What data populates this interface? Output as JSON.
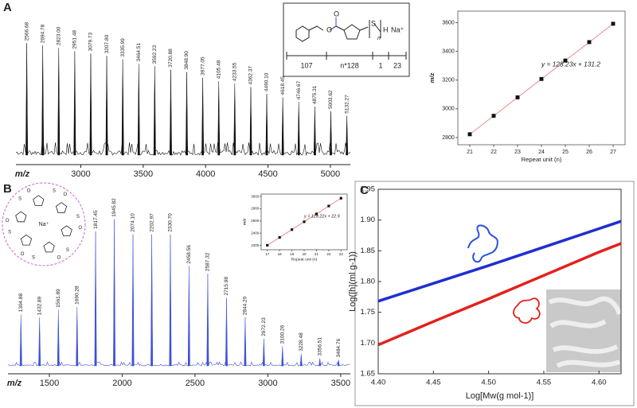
{
  "panels": [
    "A",
    "B",
    "C"
  ],
  "structure": {
    "atoms": [
      "O",
      "O",
      "S",
      "n",
      "H",
      "Na⁺"
    ],
    "segments": [
      "107",
      "n*128",
      "1",
      "23"
    ]
  },
  "macrocycle": {
    "atoms": [
      "O",
      "S",
      "Na⁺"
    ]
  },
  "chart_data": [
    {
      "type": "spectrum",
      "xlabel": "m/z",
      "color": "#111111",
      "x": [
        2566.68,
        2694.78,
        2823.0,
        2951.48,
        3079.73,
        3207.8,
        3335.99,
        3464.51,
        3592.23,
        3720.88,
        3848.9,
        3977.05,
        4105.48,
        4233.55,
        4362.37,
        4490.1,
        4618.45,
        4746.67,
        4875.31,
        5003.62,
        5132.27
      ],
      "x_labels": [
        "2566.68",
        "2694.78",
        "2823.00",
        "2951.48",
        "3079.73",
        "3207.80",
        "3335.99",
        "3464.51",
        "3592.23",
        "3720.88",
        "3848.90",
        "3977.05",
        "4105.48",
        "4233.55",
        "4362.37",
        "4490.10",
        "4618.45",
        "4746.67",
        "4875.31",
        "5003.62",
        "5132.27"
      ],
      "values": [
        97,
        95,
        93,
        90,
        88,
        86,
        83,
        79,
        77,
        74,
        72,
        67,
        64,
        62,
        59,
        53,
        50,
        46,
        42,
        38,
        34
      ],
      "xlim": [
        2480,
        5160
      ],
      "xticks": [
        3000,
        3500,
        4000,
        4500,
        5000
      ]
    },
    {
      "type": "scatter",
      "xlabel": "Repeat unit (n)",
      "ylabel": "m/z",
      "annotation": "y = 128.23x + 131.2",
      "color": "#111111",
      "fit_color": "#e88080",
      "x": [
        21,
        22,
        23,
        24,
        25,
        26,
        27
      ],
      "values": [
        2823.0,
        2951.48,
        3079.73,
        3207.8,
        3335.99,
        3464.51,
        3592.23
      ],
      "xlim": [
        20.5,
        27.5
      ],
      "xticks": [
        21,
        22,
        23,
        24,
        25,
        26,
        27
      ],
      "ylim": [
        2750,
        3680
      ],
      "yticks": [
        2800,
        3000,
        3200,
        3400,
        3600
      ]
    },
    {
      "type": "spectrum",
      "xlabel": "m/z",
      "color": "#3f51d6",
      "x": [
        1304.88,
        1432.89,
        1561.89,
        1690.28,
        1817.45,
        1945.82,
        2074.1,
        2202.97,
        2330.7,
        2458.56,
        2587.32,
        2715.98,
        2844.2,
        2972.23,
        3100.26,
        3228.48,
        3356.51,
        3484.76
      ],
      "x_labels": [
        "1304.88",
        "1432.89",
        "1561.89",
        "1690.28",
        "1817.45",
        "1945.82",
        "2074.10",
        "2202.97",
        "2330.70",
        "2458.56",
        "2587.32",
        "2715.98",
        "2844.20",
        "2972.23",
        "3100.26",
        "3228.48",
        "3356.51",
        "3484.76"
      ],
      "values": [
        34,
        32,
        37,
        39,
        89,
        97,
        87,
        87,
        87,
        66,
        61,
        45,
        32,
        18,
        13,
        8,
        5,
        4
      ],
      "xlim": [
        1216,
        3566
      ],
      "xticks": [
        1500,
        2000,
        2500,
        3000,
        3500
      ]
    },
    {
      "type": "scatter",
      "xlabel": "Repeat unit (n)",
      "ylabel": "m/z",
      "annotation": "y = 128.22x + 22.9",
      "color": "#111111",
      "fit_color": "#e88080",
      "x": [
        17,
        18,
        19,
        20,
        21,
        22,
        23
      ],
      "values": [
        2202.97,
        2330.7,
        2458.56,
        2587.32,
        2715.98,
        2844.2,
        2972.23
      ],
      "xlim": [
        16.5,
        23.5
      ],
      "xticks": [
        17,
        18,
        19,
        20,
        21,
        22,
        23
      ],
      "ylim": [
        2130,
        3040
      ],
      "yticks": [
        2200,
        2400,
        2600,
        2800,
        3000
      ]
    },
    {
      "type": "line",
      "xlabel": "Log[Mw(g mol-1)]",
      "ylabel": "Log([h](ml g-1))",
      "x": [
        4.4,
        4.45,
        4.5,
        4.55,
        4.6,
        4.62
      ],
      "series": [
        {
          "color": "#1f2fd0",
          "values": [
            1.768,
            1.797,
            1.826,
            1.856,
            1.886,
            1.898
          ]
        },
        {
          "color": "#e3201b",
          "values": [
            1.697,
            1.735,
            1.772,
            1.81,
            1.848,
            1.862
          ]
        }
      ],
      "xlim": [
        4.4,
        4.62
      ],
      "xticks": [
        {
          "value": 4.4,
          "label": "4.40"
        },
        4.45,
        {
          "value": 4.5,
          "label": "4.50"
        },
        4.55,
        {
          "value": 4.6,
          "label": "4.60"
        }
      ],
      "ylim": [
        1.65,
        1.95
      ],
      "yticks": [
        1.65,
        {
          "value": 1.7,
          "label": "1.70"
        },
        1.75,
        {
          "value": 1.8,
          "label": "1.80"
        },
        1.85,
        {
          "value": 1.9,
          "label": "1.90"
        },
        1.95
      ]
    }
  ]
}
